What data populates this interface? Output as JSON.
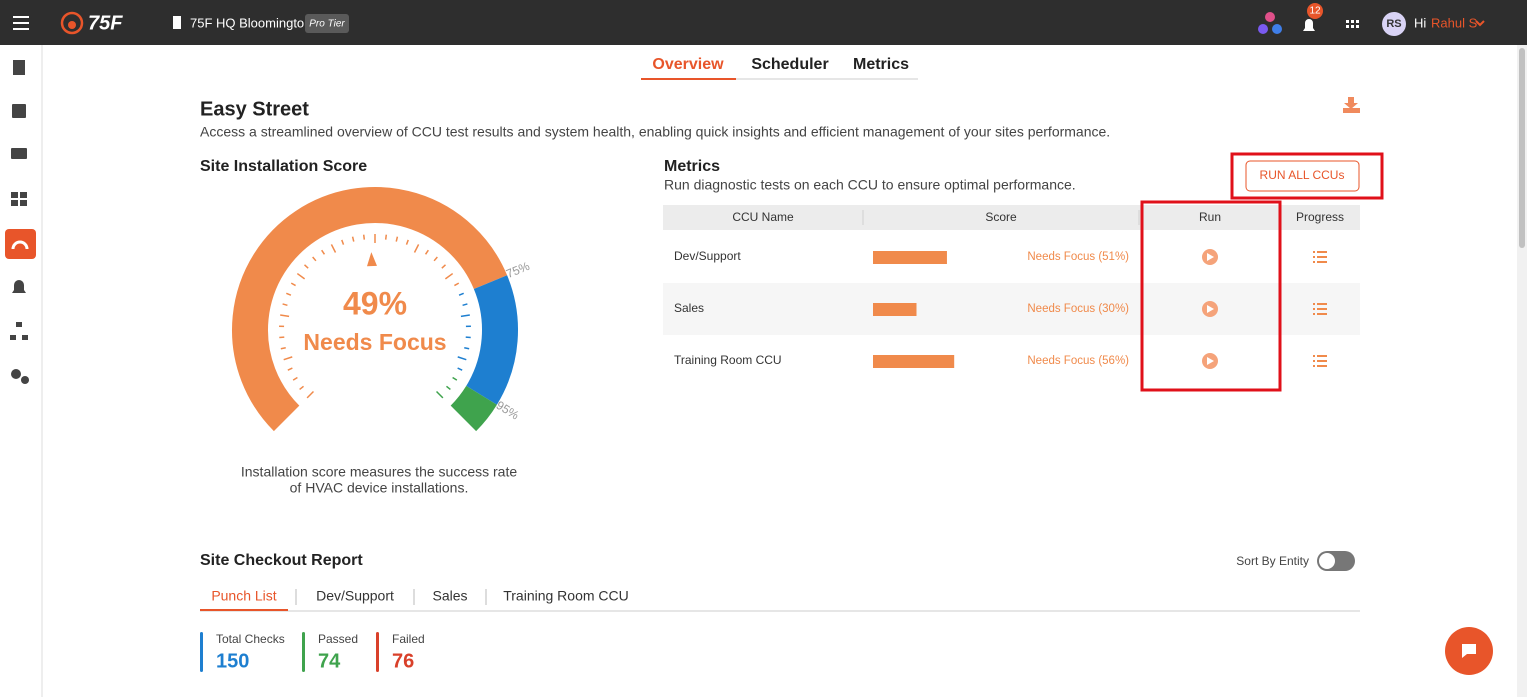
{
  "header": {
    "brand": "75F",
    "site": "75F HQ Bloomington",
    "tier": "Pro Tier",
    "notifications": 12,
    "avatar": "RS",
    "greeting": "Hi",
    "user": "Rahul S"
  },
  "tabs": [
    "Overview",
    "Scheduler",
    "Metrics"
  ],
  "page": {
    "title": "Easy Street",
    "description": "Access a streamlined overview of CCU test results and system health, enabling quick insights and efficient management of your sites performance."
  },
  "gauge": {
    "title": "Site Installation Score",
    "range": [
      0,
      100
    ],
    "value": 49,
    "value_label": "49%",
    "status": "Needs Focus",
    "thresholds": [
      {
        "value": 75,
        "label": "75%"
      },
      {
        "value": 95,
        "label": "95%"
      }
    ],
    "caption_lines": [
      "Installation score measures the success rate",
      "of HVAC device installations."
    ]
  },
  "metrics": {
    "title": "Metrics",
    "description": "Run diagnostic tests on each CCU to ensure optimal performance.",
    "button": "RUN ALL CCUs",
    "columns": [
      "CCU Name",
      "Score",
      "Run",
      "Progress"
    ],
    "score_range": [
      0,
      100
    ],
    "rows": [
      {
        "name": "Dev/Support",
        "score": 51,
        "score_label": "Needs Focus (51%)"
      },
      {
        "name": "Sales",
        "score": 30,
        "score_label": "Needs Focus (30%)"
      },
      {
        "name": "Training Room CCU",
        "score": 56,
        "score_label": "Needs Focus (56%)"
      }
    ]
  },
  "checkout": {
    "title": "Site Checkout Report",
    "sort_label": "Sort By Entity",
    "tabs": [
      "Punch List",
      "Dev/Support",
      "Sales",
      "Training Room CCU"
    ],
    "stats": [
      {
        "label": "Total Checks",
        "value": 150,
        "color": "#1e7fd0"
      },
      {
        "label": "Passed",
        "value": 74,
        "color": "#3fa34d"
      },
      {
        "label": "Failed",
        "value": 76,
        "color": "#d9402a"
      }
    ]
  }
}
